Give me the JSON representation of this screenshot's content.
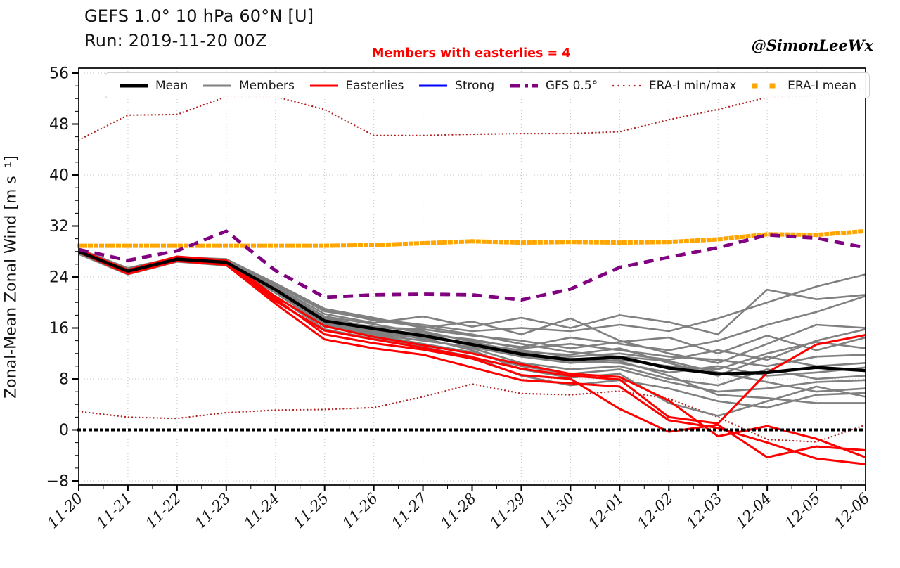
{
  "header": {
    "title_line1": "GEFS 1.0° 10 hPa 60°N [U]",
    "title_line2": "Run: 2019-11-20 00Z",
    "annotation": "Members with easterlies = 4",
    "annotation_color": "#ff0000",
    "watermark": "@SimonLeeWx"
  },
  "chart_data": {
    "type": "line",
    "title": "GEFS 1.0° 10 hPa 60°N [U]  Run: 2019-11-20 00Z",
    "ylabel": "Zonal-Mean Zonal Wind [m s⁻¹]",
    "xlabel": "",
    "x_categories": [
      "11-20",
      "11-21",
      "11-22",
      "11-23",
      "11-24",
      "11-25",
      "11-26",
      "11-27",
      "11-28",
      "11-29",
      "11-30",
      "12-01",
      "12-02",
      "12-03",
      "12-04",
      "12-05",
      "12-06"
    ],
    "y_ticks": [
      -8,
      0,
      8,
      16,
      24,
      32,
      40,
      48,
      56
    ],
    "ylim": [
      -8.7,
      56.8
    ],
    "grid": "dotted",
    "members_with_easterlies": 4,
    "legend_position": "top",
    "legend": {
      "items": [
        {
          "label": "Mean",
          "color": "#000000",
          "style": "solid",
          "width": 5
        },
        {
          "label": "Members",
          "color": "#808080",
          "style": "solid",
          "width": 3
        },
        {
          "label": "Easterlies",
          "color": "#ff0000",
          "style": "solid",
          "width": 3
        },
        {
          "label": "Strong",
          "color": "#0000ff",
          "style": "solid",
          "width": 3
        },
        {
          "label": "GFS 0.5°",
          "color": "#800080",
          "style": "dashed",
          "width": 5
        },
        {
          "label": "ERA-I min/max",
          "color": "#b22222",
          "style": "dotted",
          "width": 2.5
        },
        {
          "label": "ERA-I mean",
          "color": "#ffa500",
          "style": "square-dotted",
          "width": 7
        }
      ]
    },
    "series": [
      {
        "name": "ERA-I max",
        "role": "era-max-line",
        "color": "#b22222",
        "style": "dotted",
        "width": 2.3,
        "values": [
          45.5,
          49.4,
          49.5,
          52.3,
          52.3,
          50.3,
          46.2,
          46.2,
          46.4,
          46.5,
          46.5,
          46.8,
          48.7,
          50.3,
          52.2,
          52.4,
          53.7
        ]
      },
      {
        "name": "ERA-I min",
        "role": "era-min-line",
        "color": "#b22222",
        "style": "dotted",
        "width": 2.3,
        "values": [
          2.9,
          2.0,
          1.8,
          2.7,
          3.1,
          3.2,
          3.5,
          5.2,
          7.2,
          5.7,
          5.5,
          6.1,
          4.9,
          2.0,
          -1.5,
          -1.9,
          0.8
        ]
      },
      {
        "name": "Member 01",
        "role": "member-line",
        "color": "#808080",
        "style": "solid",
        "width": 2.6,
        "values": [
          28.2,
          25.2,
          27.0,
          26.6,
          22.8,
          18.6,
          17.4,
          16.5,
          15.5,
          16.0,
          15.5,
          16.5,
          15.5,
          17.5,
          20.0,
          22.5,
          24.4
        ]
      },
      {
        "name": "Member 02",
        "role": "member-line",
        "color": "#808080",
        "style": "solid",
        "width": 2.6,
        "values": [
          28.0,
          25.0,
          27.2,
          26.4,
          22.5,
          18.2,
          16.8,
          17.8,
          16.2,
          17.6,
          16.0,
          18.0,
          16.9,
          15.0,
          22.0,
          20.5,
          21.2
        ]
      },
      {
        "name": "Member 03",
        "role": "member-line",
        "color": "#808080",
        "style": "solid",
        "width": 2.6,
        "values": [
          27.8,
          24.6,
          26.6,
          26.2,
          22.2,
          17.8,
          16.6,
          15.2,
          14.0,
          13.0,
          14.5,
          13.5,
          12.5,
          14.0,
          16.5,
          18.5,
          21.0
        ]
      },
      {
        "name": "Member 04",
        "role": "member-line",
        "color": "#808080",
        "style": "solid",
        "width": 2.6,
        "values": [
          28.4,
          25.4,
          27.1,
          26.8,
          23.0,
          19.0,
          17.6,
          16.0,
          17.0,
          15.0,
          17.5,
          14.0,
          12.0,
          10.5,
          13.5,
          16.5,
          16.0
        ]
      },
      {
        "name": "Member 05",
        "role": "member-line",
        "color": "#808080",
        "style": "solid",
        "width": 2.6,
        "values": [
          27.9,
          24.8,
          26.9,
          26.0,
          21.8,
          16.9,
          15.6,
          14.5,
          13.5,
          12.5,
          11.5,
          12.0,
          11.0,
          12.5,
          11.0,
          14.0,
          15.8
        ]
      },
      {
        "name": "Member 06",
        "role": "member-line",
        "color": "#808080",
        "style": "solid",
        "width": 2.6,
        "values": [
          28.1,
          25.1,
          26.7,
          26.3,
          22.3,
          17.4,
          16.1,
          15.8,
          14.8,
          14.0,
          12.8,
          13.8,
          14.5,
          12.0,
          14.8,
          12.5,
          14.5
        ]
      },
      {
        "name": "Member 07",
        "role": "member-line",
        "color": "#808080",
        "style": "solid",
        "width": 2.6,
        "values": [
          27.7,
          24.5,
          26.5,
          26.1,
          21.5,
          16.4,
          15.0,
          14.0,
          13.0,
          11.5,
          10.5,
          11.0,
          10.0,
          9.5,
          12.0,
          13.8,
          12.8
        ]
      },
      {
        "name": "Member 08",
        "role": "member-line",
        "color": "#808080",
        "style": "solid",
        "width": 2.6,
        "values": [
          28.3,
          25.3,
          27.0,
          26.5,
          22.6,
          17.6,
          15.9,
          15.0,
          14.2,
          12.8,
          13.5,
          12.5,
          11.5,
          11.0,
          10.0,
          11.5,
          11.8
        ]
      },
      {
        "name": "Member 09",
        "role": "member-line",
        "color": "#808080",
        "style": "solid",
        "width": 2.6,
        "values": [
          28.0,
          24.9,
          26.8,
          26.2,
          22.1,
          17.2,
          16.2,
          15.5,
          13.8,
          12.2,
          11.8,
          12.8,
          10.5,
          8.5,
          11.5,
          10.0,
          10.5
        ]
      },
      {
        "name": "Member 10",
        "role": "member-line",
        "color": "#808080",
        "style": "solid",
        "width": 2.6,
        "values": [
          27.8,
          24.7,
          26.6,
          26.0,
          21.9,
          16.7,
          15.4,
          14.8,
          13.2,
          11.8,
          10.8,
          10.5,
          9.0,
          10.0,
          8.5,
          9.0,
          9.8
        ]
      },
      {
        "name": "Member 11",
        "role": "member-line",
        "color": "#808080",
        "style": "solid",
        "width": 2.6,
        "values": [
          28.2,
          25.0,
          26.9,
          26.4,
          22.4,
          17.7,
          16.0,
          14.2,
          12.8,
          10.5,
          9.5,
          10.0,
          8.0,
          7.0,
          9.5,
          8.0,
          8.5
        ]
      },
      {
        "name": "Member 12",
        "role": "member-line",
        "color": "#808080",
        "style": "solid",
        "width": 2.6,
        "values": [
          27.9,
          24.8,
          26.7,
          26.1,
          21.7,
          16.2,
          14.9,
          13.5,
          12.2,
          10.0,
          8.8,
          9.5,
          7.5,
          6.0,
          6.5,
          7.5,
          7.8
        ]
      },
      {
        "name": "Member 13",
        "role": "member-line",
        "color": "#808080",
        "style": "solid",
        "width": 2.6,
        "values": [
          28.1,
          25.2,
          27.1,
          26.6,
          22.9,
          18.8,
          17.2,
          16.2,
          15.0,
          13.5,
          12.2,
          11.5,
          10.8,
          9.0,
          7.5,
          6.0,
          6.5
        ]
      },
      {
        "name": "Member 14",
        "role": "member-line",
        "color": "#808080",
        "style": "solid",
        "width": 2.6,
        "values": [
          27.6,
          24.4,
          26.4,
          25.8,
          21.0,
          15.8,
          14.3,
          13.0,
          11.5,
          8.5,
          7.0,
          7.8,
          6.5,
          4.5,
          3.5,
          5.5,
          5.8
        ]
      },
      {
        "name": "Member 15",
        "role": "member-line",
        "color": "#808080",
        "style": "solid",
        "width": 2.6,
        "values": [
          28.0,
          25.0,
          26.8,
          26.3,
          22.0,
          17.0,
          15.7,
          14.6,
          13.6,
          12.0,
          11.2,
          10.8,
          8.5,
          5.5,
          5.0,
          4.2,
          4.2
        ]
      },
      {
        "name": "Member 16",
        "role": "member-line",
        "color": "#808080",
        "style": "solid",
        "width": 2.6,
        "values": [
          28.2,
          24.9,
          26.9,
          26.2,
          21.6,
          16.5,
          15.2,
          14.4,
          12.5,
          9.5,
          8.2,
          8.8,
          4.2,
          2.2,
          4.5,
          6.8,
          5.2
        ]
      },
      {
        "name": "Easterly member 1",
        "role": "easterly-line",
        "color": "#ff0000",
        "style": "solid",
        "width": 3,
        "values": [
          28.2,
          24.8,
          26.9,
          26.4,
          20.6,
          15.0,
          13.6,
          12.6,
          11.2,
          8.6,
          8.0,
          3.3,
          -0.3,
          0.8,
          -4.3,
          -2.6,
          -3.2
        ]
      },
      {
        "name": "Easterly member 2",
        "role": "easterly-line",
        "color": "#ff0000",
        "style": "solid",
        "width": 3,
        "values": [
          27.9,
          24.5,
          26.5,
          25.9,
          19.8,
          14.2,
          12.8,
          11.8,
          9.8,
          7.8,
          7.3,
          6.8,
          1.5,
          0.3,
          -2.0,
          -4.5,
          -5.4
        ]
      },
      {
        "name": "Easterly member 3",
        "role": "easterly-line",
        "color": "#ff0000",
        "style": "solid",
        "width": 3,
        "values": [
          28.3,
          25.1,
          27.2,
          26.6,
          20.9,
          16.3,
          14.6,
          13.3,
          12.0,
          10.3,
          8.8,
          8.3,
          4.6,
          -1.0,
          0.6,
          -1.4,
          -4.3
        ]
      },
      {
        "name": "Easterly member 4",
        "role": "easterly-line",
        "color": "#ff0000",
        "style": "solid",
        "width": 3,
        "values": [
          28.0,
          24.6,
          26.7,
          26.1,
          20.2,
          15.6,
          14.2,
          12.9,
          11.4,
          9.6,
          8.5,
          7.9,
          2.0,
          1.0,
          9.0,
          13.4,
          14.9
        ]
      },
      {
        "name": "Zero wind line",
        "role": "zero-line",
        "color": "#000000",
        "style": "square-dotted",
        "width": 4,
        "values": [
          0,
          0,
          0,
          0,
          0,
          0,
          0,
          0,
          0,
          0,
          0,
          0,
          0,
          0,
          0,
          0,
          0
        ]
      },
      {
        "name": "Mean",
        "role": "mean-line",
        "color": "#000000",
        "style": "solid",
        "width": 4.4,
        "values": [
          28.0,
          24.9,
          26.8,
          26.3,
          22.0,
          17.1,
          15.9,
          14.8,
          13.4,
          11.9,
          11.0,
          11.4,
          9.7,
          8.8,
          9.0,
          9.8,
          9.3
        ]
      },
      {
        "name": "ERA-I mean",
        "role": "era-mean-line",
        "color": "#ffa500",
        "style": "square-dotted",
        "width": 6,
        "values": [
          28.9,
          28.9,
          28.9,
          28.9,
          28.9,
          28.9,
          29.0,
          29.3,
          29.6,
          29.4,
          29.5,
          29.4,
          29.5,
          29.9,
          30.7,
          30.6,
          31.2
        ]
      },
      {
        "name": "GFS 0.5°",
        "role": "gfs-line",
        "color": "#800080",
        "style": "dashed",
        "width": 4.8,
        "values": [
          28.3,
          26.6,
          28.1,
          31.2,
          25.0,
          20.8,
          21.2,
          21.3,
          21.2,
          20.4,
          22.1,
          25.5,
          27.1,
          28.6,
          30.6,
          30.1,
          28.6
        ]
      }
    ]
  }
}
